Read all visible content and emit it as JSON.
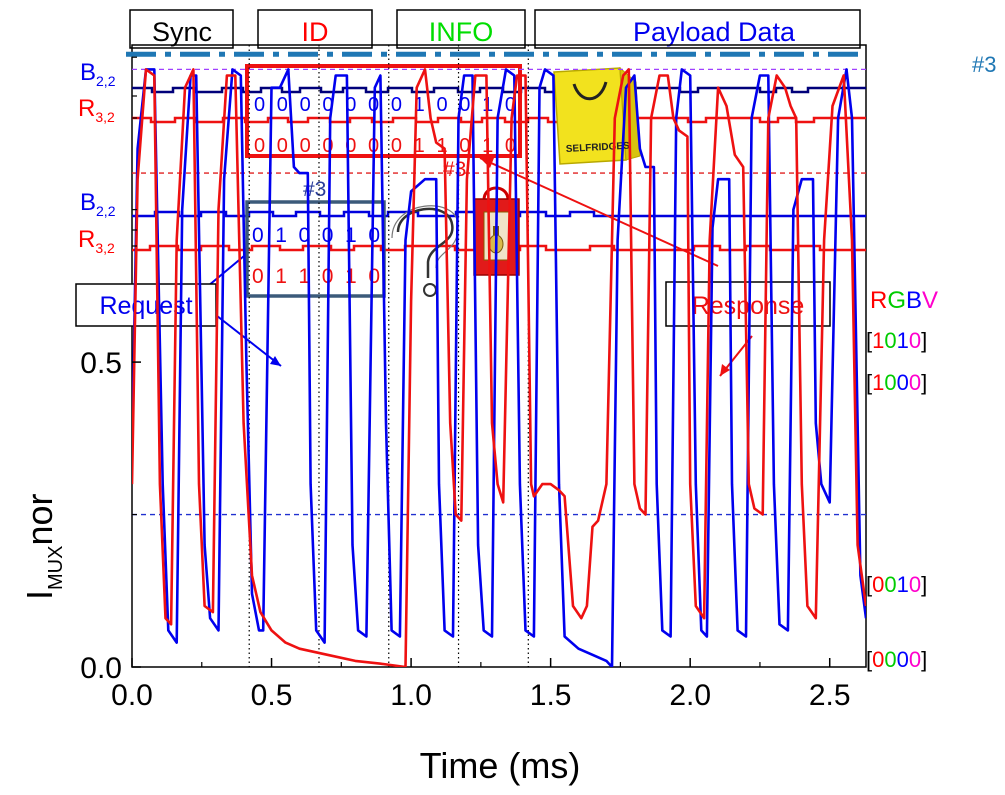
{
  "chart_data": {
    "type": "line",
    "xlabel": "Time (ms)",
    "ylabel": {
      "main": "I",
      "sub": "MUX",
      "suffix": "nor"
    },
    "xlim": [
      0,
      2.63
    ],
    "ylim": [
      0,
      1.02
    ],
    "x_ticks": [
      {
        "v": 0.0,
        "label": "0.0"
      },
      {
        "v": 0.5,
        "label": "0.5"
      },
      {
        "v": 1.0,
        "label": "1.0"
      },
      {
        "v": 1.5,
        "label": "1.5"
      },
      {
        "v": 2.0,
        "label": "2.0"
      },
      {
        "v": 2.5,
        "label": "2.5"
      }
    ],
    "y_ticks": [
      {
        "v": 0.0,
        "label": "0.0"
      },
      {
        "v": 0.5,
        "label": "0.5"
      }
    ],
    "reference_levels": [
      {
        "v": 0.98,
        "color": "#a040ff",
        "code": [
          "1",
          "0",
          "1",
          "0"
        ]
      },
      {
        "v": 0.81,
        "color": "#e02020",
        "code": [
          "1",
          "0",
          "0",
          "0"
        ]
      },
      {
        "v": 0.25,
        "color": "#2030d0",
        "code": [
          "0",
          "0",
          "1",
          "0"
        ]
      },
      {
        "v": 0.0,
        "color": null,
        "code": [
          "0",
          "0",
          "0",
          "0"
        ]
      }
    ],
    "threshold_line": {
      "v": 1.0,
      "color": "#1f77b4",
      "label": "#3"
    },
    "rgbv_header": [
      "R",
      "G",
      "B",
      "V"
    ],
    "rgbv_colors": [
      "#ff0000",
      "#00cc00",
      "#0000ff",
      "#ff00cc"
    ],
    "section_dividers": [
      0.42,
      0.67,
      0.92,
      1.17,
      1.42
    ],
    "series": [
      {
        "color": "#0000ee",
        "points": [
          [
            0.0,
            0.35
          ],
          [
            0.02,
            0.85
          ],
          [
            0.05,
            0.98
          ],
          [
            0.08,
            0.98
          ],
          [
            0.11,
            0.3
          ],
          [
            0.13,
            0.06
          ],
          [
            0.16,
            0.04
          ],
          [
            0.18,
            0.75
          ],
          [
            0.21,
            0.97
          ],
          [
            0.23,
            0.97
          ],
          [
            0.26,
            0.2
          ],
          [
            0.28,
            0.08
          ],
          [
            0.31,
            0.06
          ],
          [
            0.33,
            0.8
          ],
          [
            0.36,
            0.98
          ],
          [
            0.39,
            0.97
          ],
          [
            0.41,
            0.5
          ],
          [
            0.43,
            0.12
          ],
          [
            0.455,
            0.06
          ],
          [
            0.47,
            0.06
          ],
          [
            0.5,
            0.95
          ],
          [
            0.53,
            0.95
          ],
          [
            0.56,
            0.98
          ],
          [
            0.58,
            0.82
          ],
          [
            0.6,
            0.81
          ],
          [
            0.63,
            0.81
          ],
          [
            0.64,
            0.3
          ],
          [
            0.66,
            0.06
          ],
          [
            0.69,
            0.04
          ],
          [
            0.71,
            0.9
          ],
          [
            0.73,
            0.97
          ],
          [
            0.77,
            0.97
          ],
          [
            0.79,
            0.2
          ],
          [
            0.81,
            0.06
          ],
          [
            0.84,
            0.05
          ],
          [
            0.87,
            0.95
          ],
          [
            0.89,
            0.97
          ],
          [
            0.91,
            0.4
          ],
          [
            0.93,
            0.06
          ],
          [
            0.96,
            0.05
          ],
          [
            0.98,
            0.7
          ],
          [
            1.0,
            0.78
          ],
          [
            1.05,
            0.8
          ],
          [
            1.09,
            0.8
          ],
          [
            1.1,
            0.3
          ],
          [
            1.12,
            0.06
          ],
          [
            1.15,
            0.05
          ],
          [
            1.17,
            0.9
          ],
          [
            1.19,
            0.97
          ],
          [
            1.22,
            0.97
          ],
          [
            1.24,
            0.2
          ],
          [
            1.26,
            0.06
          ],
          [
            1.29,
            0.05
          ],
          [
            1.31,
            0.9
          ],
          [
            1.34,
            0.98
          ],
          [
            1.37,
            0.97
          ],
          [
            1.39,
            0.3
          ],
          [
            1.41,
            0.06
          ],
          [
            1.44,
            0.05
          ],
          [
            1.46,
            0.95
          ],
          [
            1.48,
            0.98
          ],
          [
            1.51,
            0.97
          ],
          [
            1.53,
            0.3
          ],
          [
            1.55,
            0.05
          ],
          [
            1.6,
            0.03
          ],
          [
            1.65,
            0.02
          ],
          [
            1.7,
            0.01
          ],
          [
            1.72,
            0.0
          ],
          [
            1.74,
            0.7
          ],
          [
            1.77,
            0.95
          ],
          [
            1.8,
            0.97
          ],
          [
            1.82,
            0.85
          ],
          [
            1.84,
            0.82
          ],
          [
            1.87,
            0.82
          ],
          [
            1.88,
            0.3
          ],
          [
            1.9,
            0.06
          ],
          [
            1.93,
            0.05
          ],
          [
            1.95,
            0.9
          ],
          [
            1.97,
            0.98
          ],
          [
            2.0,
            0.97
          ],
          [
            2.02,
            0.3
          ],
          [
            2.04,
            0.06
          ],
          [
            2.06,
            0.05
          ],
          [
            2.08,
            0.72
          ],
          [
            2.1,
            0.8
          ],
          [
            2.14,
            0.8
          ],
          [
            2.15,
            0.3
          ],
          [
            2.17,
            0.06
          ],
          [
            2.2,
            0.05
          ],
          [
            2.22,
            0.9
          ],
          [
            2.25,
            0.97
          ],
          [
            2.28,
            0.97
          ],
          [
            2.3,
            0.3
          ],
          [
            2.32,
            0.07
          ],
          [
            2.35,
            0.06
          ],
          [
            2.37,
            0.75
          ],
          [
            2.4,
            0.8
          ],
          [
            2.44,
            0.8
          ],
          [
            2.45,
            0.4
          ],
          [
            2.47,
            0.3
          ],
          [
            2.5,
            0.27
          ],
          [
            2.53,
            0.9
          ],
          [
            2.56,
            0.98
          ],
          [
            2.58,
            0.9
          ],
          [
            2.61,
            0.15
          ],
          [
            2.63,
            0.08
          ]
        ]
      },
      {
        "color": "#ee1111",
        "points": [
          [
            0.0,
            0.3
          ],
          [
            0.02,
            0.8
          ],
          [
            0.05,
            0.98
          ],
          [
            0.08,
            0.97
          ],
          [
            0.1,
            0.3
          ],
          [
            0.12,
            0.08
          ],
          [
            0.14,
            0.07
          ],
          [
            0.16,
            0.7
          ],
          [
            0.19,
            0.95
          ],
          [
            0.22,
            0.98
          ],
          [
            0.24,
            0.3
          ],
          [
            0.26,
            0.1
          ],
          [
            0.29,
            0.09
          ],
          [
            0.31,
            0.75
          ],
          [
            0.34,
            0.97
          ],
          [
            0.37,
            0.97
          ],
          [
            0.4,
            0.4
          ],
          [
            0.43,
            0.15
          ],
          [
            0.46,
            0.09
          ],
          [
            0.5,
            0.06
          ],
          [
            0.55,
            0.04
          ],
          [
            0.6,
            0.03
          ],
          [
            0.7,
            0.02
          ],
          [
            0.8,
            0.01
          ],
          [
            0.9,
            0.005
          ],
          [
            0.98,
            0.0
          ],
          [
            1.0,
            0.6
          ],
          [
            1.02,
            0.95
          ],
          [
            1.05,
            0.98
          ],
          [
            1.07,
            0.9
          ],
          [
            1.09,
            0.86
          ],
          [
            1.12,
            0.85
          ],
          [
            1.14,
            0.4
          ],
          [
            1.16,
            0.25
          ],
          [
            1.18,
            0.24
          ],
          [
            1.2,
            0.8
          ],
          [
            1.23,
            0.97
          ],
          [
            1.27,
            0.97
          ],
          [
            1.29,
            0.4
          ],
          [
            1.31,
            0.3
          ],
          [
            1.33,
            0.27
          ],
          [
            1.36,
            0.9
          ],
          [
            1.38,
            0.97
          ],
          [
            1.41,
            0.97
          ],
          [
            1.43,
            0.3
          ],
          [
            1.44,
            0.28
          ],
          [
            1.47,
            0.3
          ],
          [
            1.5,
            0.3
          ],
          [
            1.53,
            0.29
          ],
          [
            1.55,
            0.28
          ],
          [
            1.58,
            0.1
          ],
          [
            1.61,
            0.08
          ],
          [
            1.63,
            0.1
          ],
          [
            1.65,
            0.23
          ],
          [
            1.67,
            0.24
          ],
          [
            1.7,
            0.3
          ],
          [
            1.73,
            0.9
          ],
          [
            1.76,
            0.97
          ],
          [
            1.78,
            0.98
          ],
          [
            1.8,
            0.3
          ],
          [
            1.82,
            0.26
          ],
          [
            1.84,
            0.25
          ],
          [
            1.86,
            0.9
          ],
          [
            1.89,
            0.97
          ],
          [
            1.92,
            0.97
          ],
          [
            1.94,
            0.9
          ],
          [
            1.96,
            0.88
          ],
          [
            1.99,
            0.87
          ],
          [
            2.0,
            0.3
          ],
          [
            2.02,
            0.1
          ],
          [
            2.05,
            0.08
          ],
          [
            2.07,
            0.7
          ],
          [
            2.1,
            0.95
          ],
          [
            2.13,
            0.92
          ],
          [
            2.16,
            0.84
          ],
          [
            2.19,
            0.82
          ],
          [
            2.21,
            0.3
          ],
          [
            2.23,
            0.26
          ],
          [
            2.26,
            0.25
          ],
          [
            2.28,
            0.9
          ],
          [
            2.31,
            0.97
          ],
          [
            2.34,
            0.95
          ],
          [
            2.36,
            0.92
          ],
          [
            2.38,
            0.9
          ],
          [
            2.4,
            0.3
          ],
          [
            2.42,
            0.1
          ],
          [
            2.45,
            0.08
          ],
          [
            2.48,
            0.7
          ],
          [
            2.51,
            0.92
          ],
          [
            2.55,
            0.97
          ],
          [
            2.58,
            0.7
          ],
          [
            2.6,
            0.2
          ],
          [
            2.63,
            0.1
          ]
        ]
      }
    ]
  },
  "top_labels": [
    {
      "text": "Sync",
      "color": "#000000"
    },
    {
      "text": "ID",
      "color": "#ff0000"
    },
    {
      "text": "INFO",
      "color": "#00dd00"
    },
    {
      "text": "Payload Data",
      "color": "#0000ee"
    }
  ],
  "traces": {
    "b_label": {
      "main": "B",
      "sub": "2,2"
    },
    "r_label": {
      "main": "R",
      "sub": "3,2"
    }
  },
  "id_box": {
    "blue_bits": "0 0 0 0 0 0 0 1 0 0 1 0",
    "red_bits": "0 0 0 0 0 0 0 1 1 0 1 0",
    "tag": "#3"
  },
  "request_box": {
    "tag": "#3",
    "blue_bits": "0 1 0 0 1 0",
    "red_bits": "0 1 1 0 1 0"
  },
  "callouts": {
    "request": "Request",
    "response": "Response",
    "question_mark": "?"
  },
  "bag": {
    "brand_text": "SELFRIDGES"
  }
}
